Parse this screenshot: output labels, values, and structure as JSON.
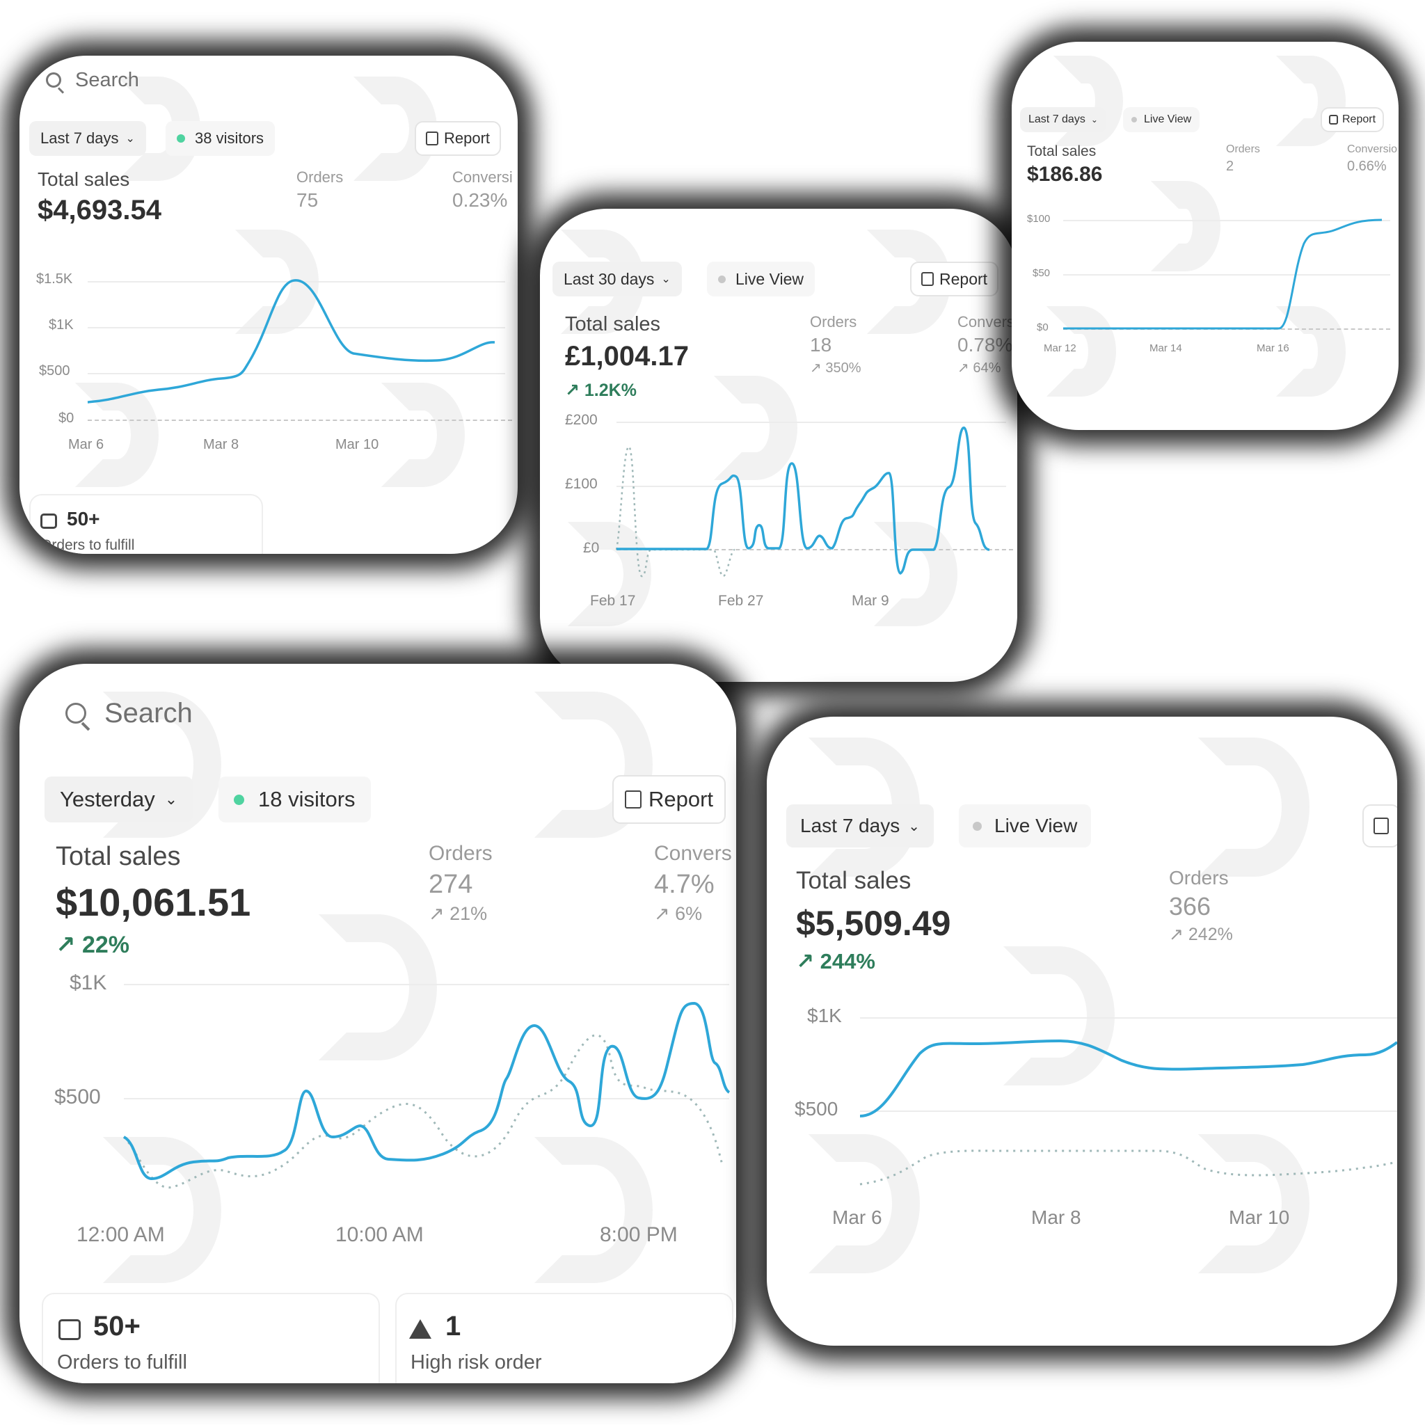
{
  "cards": [
    {
      "search_placeholder": "Search",
      "period": "Last 7 days",
      "visitors": "38 visitors",
      "report_label": "Report",
      "total_sales_label": "Total sales",
      "total_sales": "$4,693.54",
      "orders_label": "Orders",
      "orders": "75",
      "conversion_label": "Conversi",
      "conversion": "0.23%",
      "y_ticks": [
        "$1.5K",
        "$1K",
        "$500",
        "$0"
      ],
      "x_ticks": [
        "Mar 6",
        "Mar 8",
        "Mar 10"
      ],
      "fulfill_count": "50+",
      "fulfill_label": "Orders to fulfill"
    },
    {
      "period": "Last 30 days",
      "live_view": "Live View",
      "report_label": "Report",
      "total_sales_label": "Total sales",
      "total_sales": "£1,004.17",
      "sales_delta": "1.2K%",
      "orders_label": "Orders",
      "orders": "18",
      "orders_delta": "350%",
      "conversion_label": "Convers",
      "conversion": "0.78%",
      "conversion_delta": "64%",
      "y_ticks": [
        "£200",
        "£100",
        "£0"
      ],
      "x_ticks": [
        "Feb 17",
        "Feb 27",
        "Mar 9"
      ]
    },
    {
      "period": "Last 7 days",
      "live_view": "Live View",
      "report_label": "Report",
      "total_sales_label": "Total sales",
      "total_sales": "$186.86",
      "orders_label": "Orders",
      "orders": "2",
      "conversion_label": "Conversio",
      "conversion": "0.66%",
      "y_ticks": [
        "$100",
        "$50",
        "$0"
      ],
      "x_ticks": [
        "Mar 12",
        "Mar 14",
        "Mar 16"
      ]
    },
    {
      "search_placeholder": "Search",
      "period": "Yesterday",
      "visitors": "18 visitors",
      "report_label": "Report",
      "total_sales_label": "Total sales",
      "total_sales": "$10,061.51",
      "sales_delta": "22%",
      "orders_label": "Orders",
      "orders": "274",
      "orders_delta": "21%",
      "conversion_label": "Convers",
      "conversion": "4.7%",
      "conversion_delta": "6%",
      "y_ticks": [
        "$1K",
        "$500"
      ],
      "x_ticks": [
        "12:00 AM",
        "10:00 AM",
        "8:00 PM"
      ],
      "fulfill_count": "50+",
      "fulfill_label": "Orders to fulfill",
      "risk_count": "1",
      "risk_label": "High risk order"
    },
    {
      "period": "Last 7 days",
      "live_view": "Live View",
      "total_sales_label": "Total sales",
      "total_sales": "$5,509.49",
      "sales_delta": "244%",
      "orders_label": "Orders",
      "orders": "366",
      "orders_delta": "242%",
      "y_ticks": [
        "$1K",
        "$500"
      ],
      "x_ticks": [
        "Mar 6",
        "Mar 8",
        "Mar 10"
      ]
    }
  ],
  "icons": {
    "search": "search-icon",
    "chevron": "chevron-down-icon",
    "report": "report-icon",
    "inbox": "inbox-icon",
    "warning": "warning-icon",
    "arrow": "arrow-up-right-icon"
  },
  "colors": {
    "line": "#2ea7d8",
    "comparison": "#9fb8b8",
    "visitor_dot": "#4fd3a0",
    "live_dot": "#c8c8c8",
    "delta_green": "#2e7d5b"
  }
}
